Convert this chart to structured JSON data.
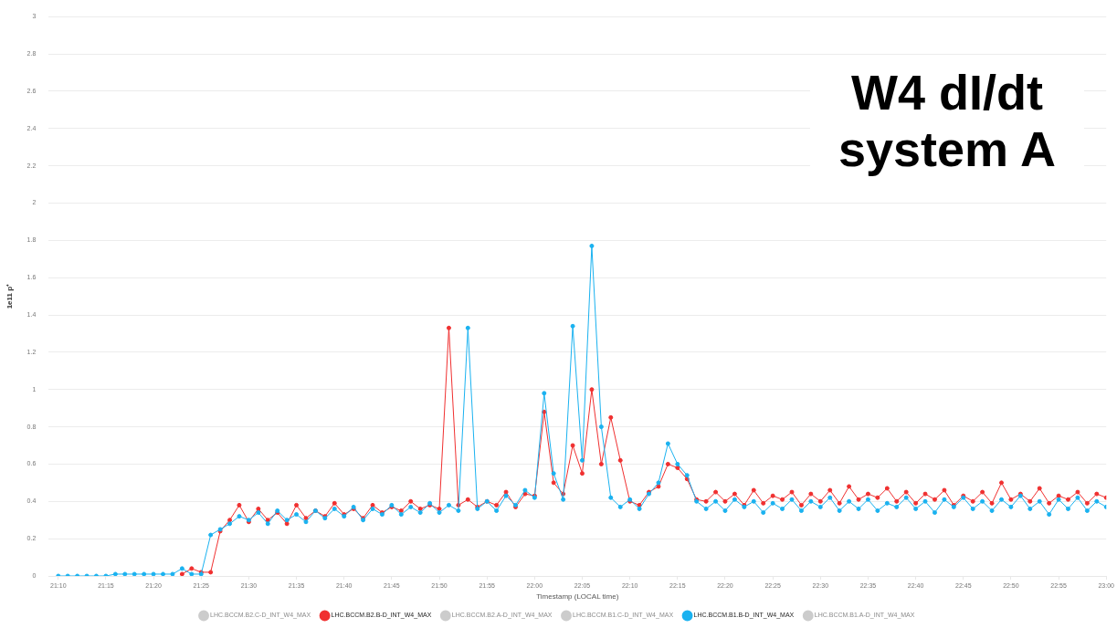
{
  "chart_data": {
    "type": "line",
    "title": "W4 dI/dt system A",
    "xlabel": "Timestamp (LOCAL time)",
    "ylabel": "1e11 p⁺",
    "x": [
      21.1667,
      21.1833,
      21.2,
      21.2167,
      21.2333,
      21.25,
      21.2667,
      21.2833,
      21.3,
      21.3167,
      21.3333,
      21.35,
      21.3667,
      21.3833,
      21.4,
      21.4167,
      21.4333,
      21.45,
      21.4667,
      21.4833,
      21.5,
      21.5167,
      21.5333,
      21.55,
      21.5667,
      21.5833,
      21.6,
      21.6167,
      21.6333,
      21.65,
      21.6667,
      21.6833,
      21.7,
      21.7167,
      21.7333,
      21.75,
      21.7667,
      21.7833,
      21.8,
      21.8167,
      21.8333,
      21.85,
      21.8667,
      21.8833,
      21.9,
      21.9167,
      21.9333,
      21.95,
      21.9667,
      21.9833,
      22,
      22.0167,
      22.0333,
      22.05,
      22.0667,
      22.0833,
      22.1,
      22.1167,
      22.1333,
      22.15,
      22.1667,
      22.1833,
      22.2,
      22.2167,
      22.2333,
      22.25,
      22.2667,
      22.2833,
      22.3,
      22.3167,
      22.3333,
      22.35,
      22.3667,
      22.3833,
      22.4,
      22.4167,
      22.4333,
      22.45,
      22.4667,
      22.4833,
      22.5,
      22.5167,
      22.5333,
      22.55,
      22.5667,
      22.5833,
      22.6,
      22.6167,
      22.6333,
      22.65,
      22.6667,
      22.6833,
      22.7,
      22.7167,
      22.7333,
      22.75,
      22.7667,
      22.7833,
      22.8,
      22.8167,
      22.8333,
      22.85,
      22.8667,
      22.8833,
      22.9,
      22.9167,
      22.9333,
      22.95,
      22.9667,
      22.9833,
      23
    ],
    "series": [
      {
        "name": "LHC.BCCM.B2.C-D_INT_W4_MAX",
        "color": "#cccccc",
        "values": [
          null,
          null,
          null,
          null,
          null,
          null,
          null,
          null,
          null,
          null,
          null,
          null,
          null,
          null,
          null,
          null,
          null,
          null,
          null,
          null,
          null,
          null,
          null,
          null,
          null,
          null,
          null,
          null,
          null,
          null,
          null,
          null,
          null,
          null,
          null,
          null,
          null,
          null,
          null,
          null,
          null,
          null,
          null,
          null,
          null,
          null,
          null,
          null,
          null,
          null,
          null,
          null,
          null,
          null,
          null,
          null,
          null,
          null,
          null,
          null,
          null,
          null,
          null,
          null,
          null,
          null,
          null,
          null,
          null,
          null,
          null,
          null,
          null,
          null,
          null,
          null,
          null,
          null,
          null,
          null,
          null,
          null,
          null,
          null,
          null,
          null,
          null,
          null,
          null,
          null,
          null,
          null,
          null,
          null,
          null,
          null,
          null,
          null,
          null,
          null,
          null,
          null,
          null,
          null,
          null,
          null,
          null,
          null,
          null,
          null,
          null
        ]
      },
      {
        "name": "LHC.BCCM.B2.B-D_INT_W4_MAX",
        "color": "#f03030",
        "values": [
          null,
          null,
          null,
          null,
          null,
          null,
          null,
          null,
          null,
          null,
          null,
          null,
          null,
          0.01,
          0.04,
          0.02,
          0.02,
          0.24,
          0.3,
          0.38,
          0.29,
          0.36,
          0.3,
          0.34,
          0.28,
          0.38,
          0.31,
          0.35,
          0.32,
          0.39,
          0.33,
          0.36,
          0.31,
          0.38,
          0.34,
          0.37,
          0.35,
          0.4,
          0.36,
          0.38,
          0.36,
          1.33,
          0.38,
          0.41,
          0.37,
          0.4,
          0.38,
          0.45,
          0.37,
          0.44,
          0.43,
          0.88,
          0.5,
          0.44,
          0.7,
          0.55,
          1.0,
          0.6,
          0.85,
          0.62,
          0.4,
          0.38,
          0.45,
          0.48,
          0.6,
          0.58,
          0.52,
          0.41,
          0.4,
          0.45,
          0.4,
          0.44,
          0.38,
          0.46,
          0.39,
          0.43,
          0.41,
          0.45,
          0.38,
          0.44,
          0.4,
          0.46,
          0.39,
          0.48,
          0.41,
          0.44,
          0.42,
          0.47,
          0.4,
          0.45,
          0.39,
          0.44,
          0.41,
          0.46,
          0.38,
          0.43,
          0.4,
          0.45,
          0.39,
          0.5,
          0.41,
          0.44,
          0.4,
          0.47,
          0.39,
          0.43,
          0.41,
          0.45,
          0.39,
          0.44,
          0.42
        ]
      },
      {
        "name": "LHC.BCCM.B2.A-D_INT_W4_MAX",
        "color": "#cccccc",
        "values": [
          null,
          null,
          null,
          null,
          null,
          null,
          null,
          null,
          null,
          null,
          null,
          null,
          null,
          null,
          null,
          null,
          null,
          null,
          null,
          null,
          null,
          null,
          null,
          null,
          null,
          null,
          null,
          null,
          null,
          null,
          null,
          null,
          null,
          null,
          null,
          null,
          null,
          null,
          null,
          null,
          null,
          null,
          null,
          null,
          null,
          null,
          null,
          null,
          null,
          null,
          null,
          null,
          null,
          null,
          null,
          null,
          null,
          null,
          null,
          null,
          null,
          null,
          null,
          null,
          null,
          null,
          null,
          null,
          null,
          null,
          null,
          null,
          null,
          null,
          null,
          null,
          null,
          null,
          null,
          null,
          null,
          null,
          null,
          null,
          null,
          null,
          null,
          null,
          null,
          null,
          null,
          null,
          null,
          null,
          null,
          null,
          null,
          null,
          null,
          null,
          null,
          null,
          null,
          null,
          null,
          null,
          null,
          null,
          null,
          null,
          null
        ]
      },
      {
        "name": "LHC.BCCM.B1.C-D_INT_W4_MAX",
        "color": "#cccccc",
        "values": [
          null,
          null,
          null,
          null,
          null,
          null,
          null,
          null,
          null,
          null,
          null,
          null,
          null,
          null,
          null,
          null,
          null,
          null,
          null,
          null,
          null,
          null,
          null,
          null,
          null,
          null,
          null,
          null,
          null,
          null,
          null,
          null,
          null,
          null,
          null,
          null,
          null,
          null,
          null,
          null,
          null,
          null,
          null,
          null,
          null,
          null,
          null,
          null,
          null,
          null,
          null,
          null,
          null,
          null,
          null,
          null,
          null,
          null,
          null,
          null,
          null,
          null,
          null,
          null,
          null,
          null,
          null,
          null,
          null,
          null,
          null,
          null,
          null,
          null,
          null,
          null,
          null,
          null,
          null,
          null,
          null,
          null,
          null,
          null,
          null,
          null,
          null,
          null,
          null,
          null,
          null,
          null,
          null,
          null,
          null,
          null,
          null,
          null,
          null,
          null,
          null,
          null,
          null,
          null,
          null,
          null,
          null,
          null,
          null,
          null,
          null
        ]
      },
      {
        "name": "LHC.BCCM.B1.B-D_INT_W4_MAX",
        "color": "#1ab2f0",
        "values": [
          0,
          0,
          0,
          0,
          0,
          0,
          0.01,
          0.01,
          0.01,
          0.01,
          0.01,
          0.01,
          0.01,
          0.04,
          0.01,
          0.01,
          0.22,
          0.25,
          0.28,
          0.32,
          0.3,
          0.34,
          0.28,
          0.35,
          0.3,
          0.33,
          0.29,
          0.35,
          0.31,
          0.36,
          0.32,
          0.37,
          0.3,
          0.36,
          0.33,
          0.38,
          0.33,
          0.37,
          0.34,
          0.39,
          0.34,
          0.38,
          0.35,
          1.33,
          0.36,
          0.4,
          0.35,
          0.43,
          0.38,
          0.46,
          0.42,
          0.98,
          0.55,
          0.41,
          1.34,
          0.62,
          1.77,
          0.8,
          0.42,
          0.37,
          0.41,
          0.36,
          0.44,
          0.5,
          0.71,
          0.6,
          0.54,
          0.4,
          0.36,
          0.4,
          0.35,
          0.41,
          0.37,
          0.4,
          0.34,
          0.39,
          0.36,
          0.41,
          0.35,
          0.4,
          0.37,
          0.42,
          0.35,
          0.4,
          0.36,
          0.41,
          0.35,
          0.39,
          0.37,
          0.42,
          0.36,
          0.4,
          0.34,
          0.41,
          0.37,
          0.42,
          0.36,
          0.4,
          0.35,
          0.41,
          0.37,
          0.43,
          0.36,
          0.4,
          0.33,
          0.41,
          0.36,
          0.42,
          0.35,
          0.4,
          0.37
        ]
      },
      {
        "name": "LHC.BCCM.B1.A-D_INT_W4_MAX",
        "color": "#cccccc",
        "values": [
          null,
          null,
          null,
          null,
          null,
          null,
          null,
          null,
          null,
          null,
          null,
          null,
          null,
          null,
          null,
          null,
          null,
          null,
          null,
          null,
          null,
          null,
          null,
          null,
          null,
          null,
          null,
          null,
          null,
          null,
          null,
          null,
          null,
          null,
          null,
          null,
          null,
          null,
          null,
          null,
          null,
          null,
          null,
          null,
          null,
          null,
          null,
          null,
          null,
          null,
          null,
          null,
          null,
          null,
          null,
          null,
          null,
          null,
          null,
          null,
          null,
          null,
          null,
          null,
          null,
          null,
          null,
          null,
          null,
          null,
          null,
          null,
          null,
          null,
          null,
          null,
          null,
          null,
          null,
          null,
          null,
          null,
          null,
          null,
          null,
          null,
          null,
          null,
          null,
          null,
          null,
          null,
          null,
          null,
          null,
          null,
          null,
          null,
          null,
          null,
          null,
          null,
          null,
          null,
          null,
          null,
          null,
          null,
          null,
          null,
          null
        ]
      }
    ],
    "xlim": [
      21.15,
      23
    ],
    "xticks": [
      {
        "value": 21.1667,
        "label": "21:10"
      },
      {
        "value": 21.25,
        "label": "21:15"
      },
      {
        "value": 21.3333,
        "label": "21:20"
      },
      {
        "value": 21.4167,
        "label": "21:25"
      },
      {
        "value": 21.5,
        "label": "21:30"
      },
      {
        "value": 21.5833,
        "label": "21:35"
      },
      {
        "value": 21.6667,
        "label": "21:40"
      },
      {
        "value": 21.75,
        "label": "21:45"
      },
      {
        "value": 21.8333,
        "label": "21:50"
      },
      {
        "value": 21.9167,
        "label": "21:55"
      },
      {
        "value": 22,
        "label": "22:00"
      },
      {
        "value": 22.0833,
        "label": "22:05"
      },
      {
        "value": 22.1667,
        "label": "22:10"
      },
      {
        "value": 22.25,
        "label": "22:15"
      },
      {
        "value": 22.3333,
        "label": "22:20"
      },
      {
        "value": 22.4167,
        "label": "22:25"
      },
      {
        "value": 22.5,
        "label": "22:30"
      },
      {
        "value": 22.5833,
        "label": "22:35"
      },
      {
        "value": 22.6667,
        "label": "22:40"
      },
      {
        "value": 22.75,
        "label": "22:45"
      },
      {
        "value": 22.8333,
        "label": "22:50"
      },
      {
        "value": 22.9167,
        "label": "22:55"
      },
      {
        "value": 23,
        "label": "23:00"
      }
    ],
    "ylim": [
      0,
      3
    ],
    "yticks": [
      0,
      0.2,
      0.4,
      0.6,
      0.8,
      1,
      1.2,
      1.4,
      1.6,
      1.8,
      2,
      2.2,
      2.4,
      2.6,
      2.8,
      3
    ],
    "grid": "y",
    "legend": "bottom",
    "marker": "circle",
    "line_style": "solid"
  }
}
